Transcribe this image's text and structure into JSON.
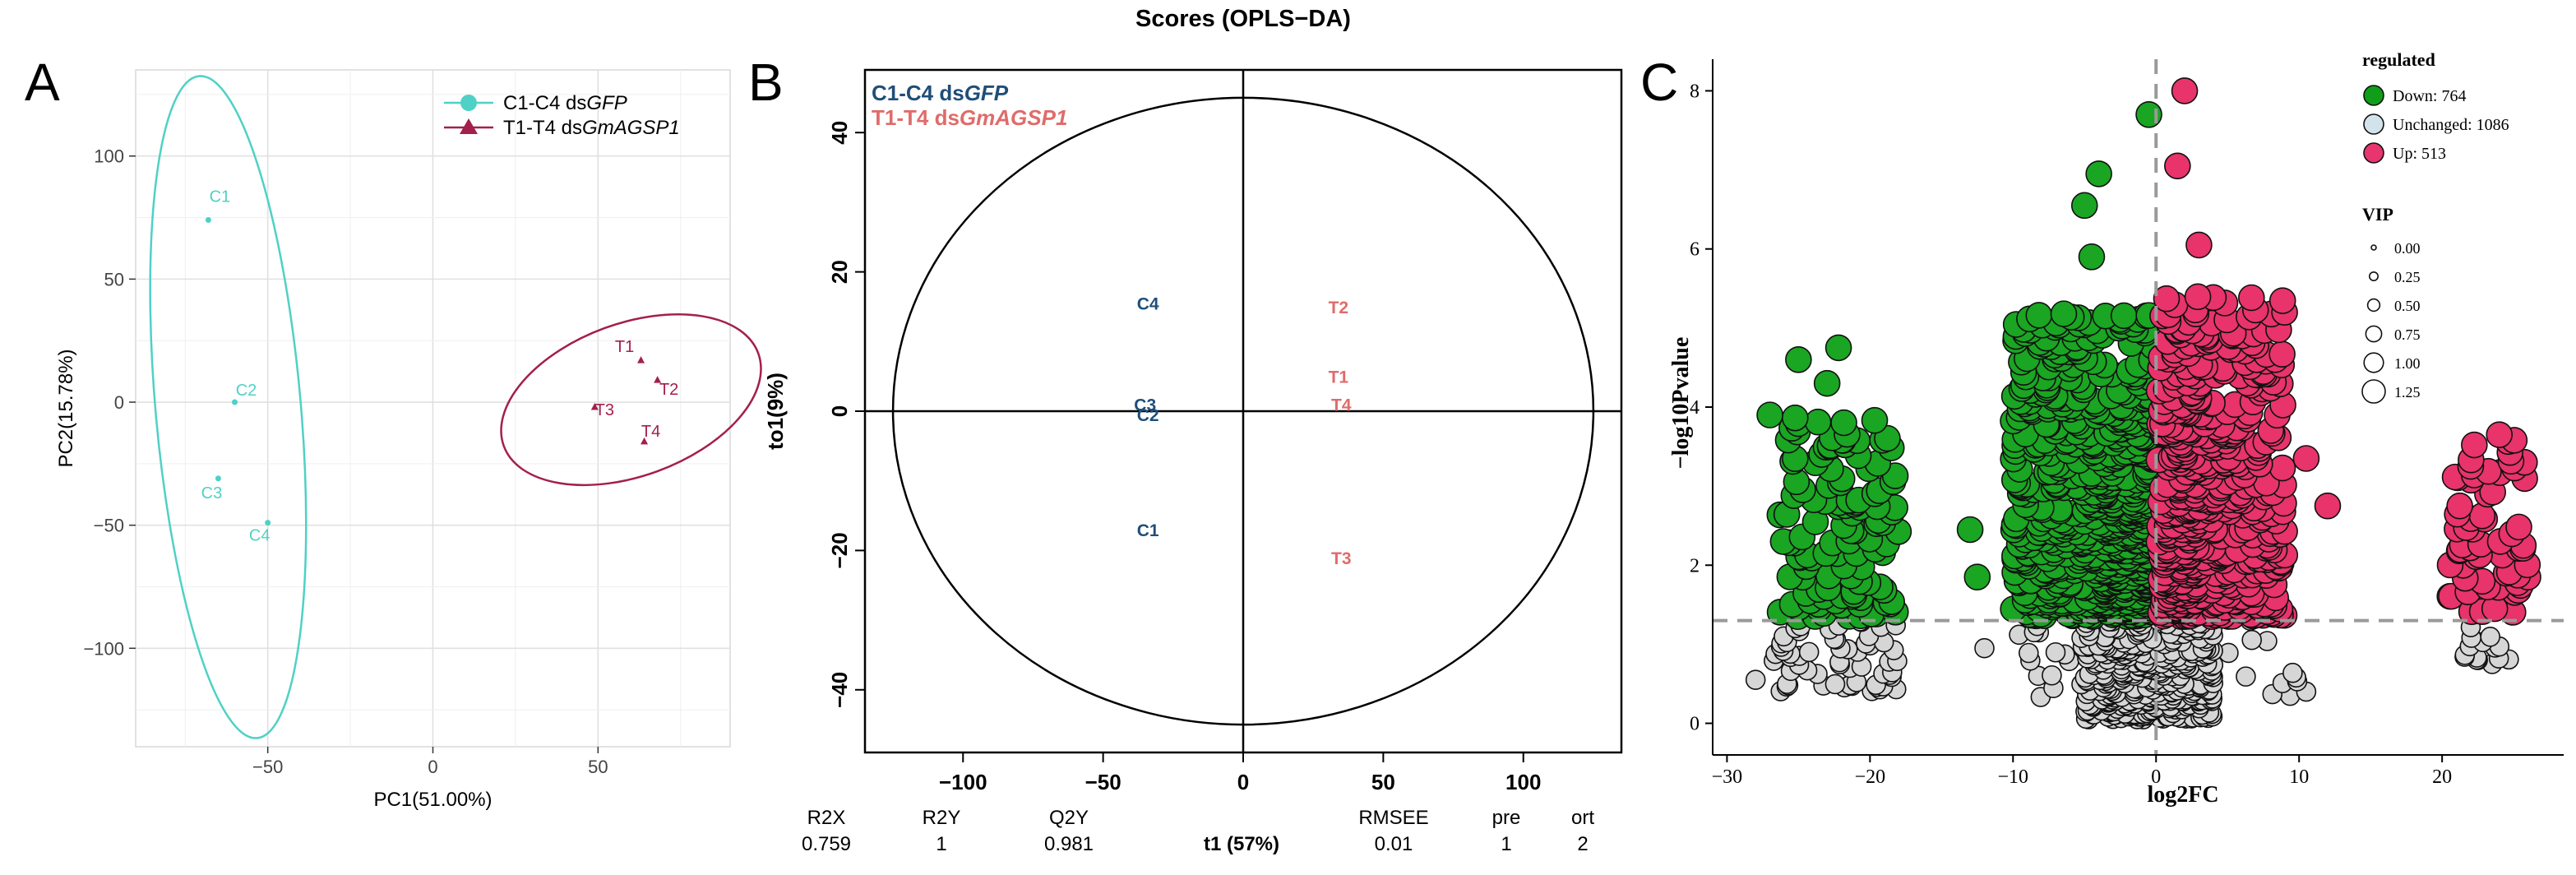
{
  "figure_title": "Scores (OPLS−DA)",
  "chart_data": [
    {
      "panel": "A",
      "type": "scatter",
      "xlabel": "PC1(51.00%)",
      "ylabel": "PC2(15.78%)",
      "xlim": [
        -90,
        90
      ],
      "ylim": [
        -140,
        135
      ],
      "xticks": [
        -50,
        0,
        50
      ],
      "yticks": [
        100,
        50,
        0,
        -50,
        -100
      ],
      "xtick_labels": [
        "−50",
        "0",
        "50"
      ],
      "ytick_labels": [
        "100",
        "50",
        "0",
        "−50",
        "−100"
      ],
      "grid": true,
      "legend_position": "top-right",
      "series": [
        {
          "name_prefix": "C1-C4 ds",
          "name_italic": "GFP",
          "color": "#4fd1c5",
          "marker": "circle",
          "points": [
            {
              "label": "C1",
              "x": -68,
              "y": 74
            },
            {
              "label": "C2",
              "x": -60,
              "y": 0
            },
            {
              "label": "C3",
              "x": -65,
              "y": -31
            },
            {
              "label": "C4",
              "x": -50,
              "y": -49
            }
          ],
          "ellipse": {
            "cx": -62,
            "cy": -2,
            "rx": 22,
            "ry": 135,
            "angle_deg": -5
          }
        },
        {
          "name_prefix": "T1-T4 ds",
          "name_italic": "GmAGSP1",
          "color": "#a3204a",
          "marker": "triangle",
          "points": [
            {
              "label": "T1",
              "x": 63,
              "y": 17
            },
            {
              "label": "T2",
              "x": 68,
              "y": 9
            },
            {
              "label": "T3",
              "x": 49,
              "y": -2
            },
            {
              "label": "T4",
              "x": 64,
              "y": -16
            }
          ],
          "ellipse": {
            "cx": 60,
            "cy": 1,
            "rx": 41,
            "ry": 31,
            "angle_deg": -20
          }
        }
      ]
    },
    {
      "panel": "B",
      "type": "scatter",
      "title": "Scores (OPLS−DA)",
      "xlabel": "t1 (57%)",
      "ylabel": "to1(9%)",
      "xlim": [
        -135,
        135
      ],
      "ylim": [
        -49,
        49
      ],
      "xticks": [
        -100,
        -50,
        0,
        50,
        100
      ],
      "yticks": [
        40,
        20,
        0,
        -20,
        -40
      ],
      "xtick_labels": [
        "−100",
        "−50",
        "0",
        "50",
        "100"
      ],
      "ytick_labels": [
        "40",
        "20",
        "0",
        "−20",
        "−40"
      ],
      "ellipse": {
        "cx": 0,
        "cy": 0,
        "rx": 125,
        "ry": 45
      },
      "series": [
        {
          "name_prefix": "C1-C4 ds",
          "name_italic": "GFP",
          "color": "#1f4e79",
          "points": [
            {
              "label": "C4",
              "x": -34,
              "y": 15.5
            },
            {
              "label": "C3",
              "x": -35,
              "y": 1
            },
            {
              "label": "C2",
              "x": -34,
              "y": -0.5
            },
            {
              "label": "C1",
              "x": -34,
              "y": -17
            }
          ]
        },
        {
          "name_prefix": "T1-T4 ds",
          "name_italic": "GmAGSP1",
          "color": "#e06b6b",
          "points": [
            {
              "label": "T2",
              "x": 34,
              "y": 15
            },
            {
              "label": "T1",
              "x": 34,
              "y": 5
            },
            {
              "label": "T4",
              "x": 35,
              "y": 1
            },
            {
              "label": "T3",
              "x": 35,
              "y": -21
            }
          ]
        }
      ],
      "stats_table": {
        "headers": [
          "R2X",
          "R2Y",
          "Q2Y",
          "RMSEE",
          "pre",
          "ort"
        ],
        "values": [
          "0.759",
          "1",
          "0.981",
          "0.01",
          "1",
          "2"
        ]
      }
    },
    {
      "panel": "C",
      "type": "scatter",
      "subtype": "volcano",
      "xlabel": "log2FC",
      "ylabel": "−log10Pvalue",
      "xlim": [
        -31,
        28.5
      ],
      "ylim": [
        -0.4,
        8.4
      ],
      "xticks": [
        -30,
        -20,
        -10,
        0,
        10,
        20
      ],
      "yticks": [
        0,
        2,
        4,
        6,
        8
      ],
      "xtick_labels": [
        "−30",
        "−20",
        "−10",
        "0",
        "10",
        "20"
      ],
      "ytick_labels": [
        "0",
        "2",
        "4",
        "6",
        "8"
      ],
      "thresholds": {
        "x": 0,
        "y": 1.3
      },
      "legend": {
        "title": "regulated",
        "items": [
          {
            "label": "Down: 764",
            "color": "#0f9d1a"
          },
          {
            "label": "Unchanged: 1086",
            "color": "#d3e3ec"
          },
          {
            "label": "Up: 513",
            "color": "#e8356d"
          }
        ]
      },
      "size_legend": {
        "title": "VIP",
        "values": [
          0,
          0.25,
          0.5,
          0.75,
          1,
          1.25
        ],
        "labels": [
          "0.00",
          "0.25",
          "0.50",
          "0.75",
          "1.00",
          "1.25"
        ]
      },
      "group_colors": {
        "down": "#1aa522",
        "unchanged": "#d6d6d6",
        "up": "#e8336b"
      },
      "clusters": [
        {
          "group": "down",
          "x_range": [
            -26.5,
            -18
          ],
          "y_range": [
            1.35,
            3.9
          ],
          "n": 120
        },
        {
          "group": "down",
          "x_range": [
            -10,
            -0.2
          ],
          "y_range": [
            1.35,
            5.2
          ],
          "n": 520
        },
        {
          "group": "down",
          "x_range": [
            -4,
            -0.2
          ],
          "y_range": [
            1.4,
            4.2
          ],
          "n": 160
        },
        {
          "group": "unchanged",
          "x_range": [
            -27,
            -18
          ],
          "y_range": [
            0.4,
            1.3
          ],
          "n": 60
        },
        {
          "group": "unchanged",
          "x_range": [
            -5,
            4
          ],
          "y_range": [
            0.05,
            1.3
          ],
          "n": 320
        },
        {
          "group": "unchanged",
          "x_range": [
            -10,
            11
          ],
          "y_range": [
            0.3,
            1.3
          ],
          "n": 50
        },
        {
          "group": "unchanged",
          "x_range": [
            21.5,
            25
          ],
          "y_range": [
            0.8,
            1.3
          ],
          "n": 14
        },
        {
          "group": "up",
          "x_range": [
            0.2,
            9
          ],
          "y_range": [
            1.35,
            5.4
          ],
          "n": 420
        },
        {
          "group": "up",
          "x_range": [
            0.2,
            3
          ],
          "y_range": [
            1.4,
            4.5
          ],
          "n": 110
        },
        {
          "group": "up",
          "x_range": [
            20.5,
            26
          ],
          "y_range": [
            1.4,
            3.6
          ],
          "n": 60
        }
      ],
      "highlight_points": [
        {
          "group": "down",
          "x": -27,
          "y": 3.9
        },
        {
          "group": "down",
          "x": -25,
          "y": 4.6
        },
        {
          "group": "down",
          "x": -22.2,
          "y": 4.75
        },
        {
          "group": "down",
          "x": -23,
          "y": 4.3
        },
        {
          "group": "down",
          "x": -13,
          "y": 2.45
        },
        {
          "group": "down",
          "x": -12.5,
          "y": 1.85
        },
        {
          "group": "down",
          "x": -5,
          "y": 6.55
        },
        {
          "group": "down",
          "x": -4,
          "y": 6.95
        },
        {
          "group": "down",
          "x": -0.5,
          "y": 7.7
        },
        {
          "group": "down",
          "x": -4.5,
          "y": 5.9
        },
        {
          "group": "up",
          "x": 2,
          "y": 8.0
        },
        {
          "group": "up",
          "x": 1.5,
          "y": 7.05
        },
        {
          "group": "up",
          "x": 3,
          "y": 6.05
        },
        {
          "group": "up",
          "x": 12,
          "y": 2.75
        },
        {
          "group": "up",
          "x": 10.5,
          "y": 3.35
        },
        {
          "group": "up",
          "x": 7.5,
          "y": 4.45
        },
        {
          "group": "up",
          "x": 24,
          "y": 3.65
        },
        {
          "group": "up",
          "x": 22,
          "y": 3.25
        },
        {
          "group": "up",
          "x": 26,
          "y": 1.85
        },
        {
          "group": "unchanged",
          "x": -28,
          "y": 0.55
        },
        {
          "group": "unchanged",
          "x": -12,
          "y": 0.95
        },
        {
          "group": "unchanged",
          "x": 10.5,
          "y": 0.4
        },
        {
          "group": "unchanged",
          "x": 23.5,
          "y": 0.75
        }
      ]
    }
  ]
}
